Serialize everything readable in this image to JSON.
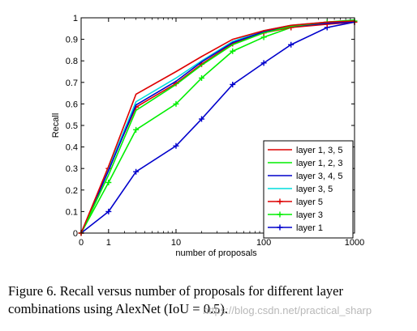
{
  "chart_data": {
    "type": "line",
    "xscale": "log1p",
    "xlabel": "number of proposals",
    "ylabel": "Recall",
    "xlim": [
      0,
      1000
    ],
    "ylim": [
      0,
      1
    ],
    "xticks": [
      0,
      1,
      10,
      100,
      1000
    ],
    "xtick_labels": [
      "0",
      "1",
      "10",
      "100",
      "1000"
    ],
    "yticks": [
      0,
      0.1,
      0.2,
      0.3,
      0.4,
      0.5,
      0.6,
      0.7,
      0.8,
      0.9,
      1
    ],
    "ytick_labels": [
      "0",
      "0.1",
      "0.2",
      "0.3",
      "0.4",
      "0.5",
      "0.6",
      "0.7",
      "0.8",
      "0.9",
      "1"
    ],
    "grid": false,
    "legend_position": "bottom-right",
    "series": [
      {
        "name": "layer 1, 3, 5",
        "color": "#dd0000",
        "marker": "none",
        "x": [
          0,
          1,
          3,
          10,
          20,
          45,
          100,
          200,
          500,
          1000
        ],
        "y": [
          0,
          0.31,
          0.645,
          0.75,
          0.82,
          0.9,
          0.94,
          0.965,
          0.98,
          0.985
        ]
      },
      {
        "name": "layer 1, 2, 3",
        "color": "#00ee00",
        "marker": "none",
        "x": [
          0,
          1,
          3,
          10,
          20,
          45,
          100,
          200,
          500,
          1000
        ],
        "y": [
          0,
          0.27,
          0.57,
          0.69,
          0.78,
          0.875,
          0.93,
          0.96,
          0.98,
          0.99
        ]
      },
      {
        "name": "layer 3, 4, 5",
        "color": "#0000cc",
        "marker": "none",
        "x": [
          0,
          1,
          3,
          10,
          20,
          45,
          100,
          200,
          500,
          1000
        ],
        "y": [
          0,
          0.29,
          0.595,
          0.705,
          0.795,
          0.885,
          0.935,
          0.96,
          0.975,
          0.98
        ]
      },
      {
        "name": "layer 3, 5",
        "color": "#00dddd",
        "marker": "none",
        "x": [
          0,
          1,
          3,
          10,
          20,
          45,
          100,
          200,
          500,
          1000
        ],
        "y": [
          0,
          0.3,
          0.61,
          0.72,
          0.8,
          0.89,
          0.94,
          0.965,
          0.98,
          0.985
        ]
      },
      {
        "name": "layer 5",
        "color": "#dd0000",
        "marker": "plus",
        "x": [
          0,
          1,
          3,
          10,
          20,
          45,
          100,
          200,
          500,
          1000
        ],
        "y": [
          0,
          0.3,
          0.585,
          0.695,
          0.785,
          0.88,
          0.93,
          0.955,
          0.97,
          0.98
        ]
      },
      {
        "name": "layer 3",
        "color": "#00ee00",
        "marker": "plus",
        "x": [
          0,
          1,
          3,
          10,
          20,
          45,
          100,
          200,
          500,
          1000
        ],
        "y": [
          0,
          0.235,
          0.48,
          0.6,
          0.72,
          0.845,
          0.91,
          0.955,
          0.98,
          0.985
        ]
      },
      {
        "name": "layer 1",
        "color": "#0000cc",
        "marker": "plus",
        "x": [
          0,
          1,
          3,
          10,
          20,
          45,
          100,
          200,
          500,
          1000
        ],
        "y": [
          0,
          0.1,
          0.285,
          0.405,
          0.53,
          0.69,
          0.79,
          0.875,
          0.955,
          0.98
        ]
      }
    ]
  },
  "caption": "Figure 6. Recall versus number of proposals for different layer combinations using AlexNet (IoU = 0.5).",
  "watermark": "https://blog.csdn.net/practical_sharp"
}
